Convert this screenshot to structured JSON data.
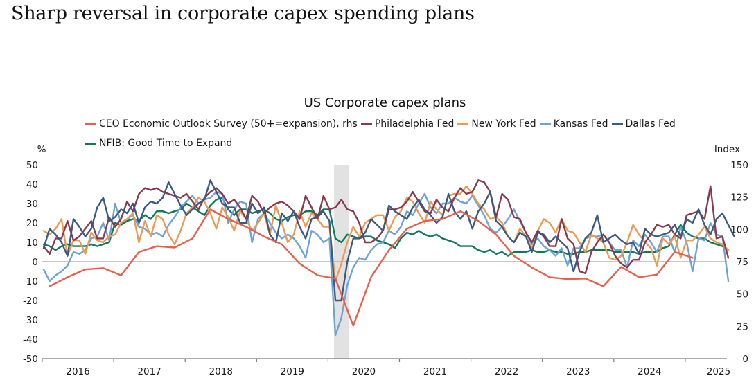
{
  "page_title": "Sharp reversal in corporate capex spending plans",
  "chart_data": {
    "type": "line",
    "title": "US Corporate capex plans",
    "left_axis": {
      "unit_label": "%",
      "ylim": [
        -50,
        50
      ],
      "ticks": [
        "50",
        "40",
        "30",
        "20",
        "10",
        "0",
        "-10",
        "-20",
        "-30",
        "-40",
        "-50"
      ],
      "tick_values": [
        50,
        40,
        30,
        20,
        10,
        0,
        -10,
        -20,
        -30,
        -40,
        -50
      ]
    },
    "right_axis": {
      "unit_label": "Index",
      "ylim": [
        0,
        150
      ],
      "ticks": [
        "150",
        "125",
        "100",
        "75",
        "50",
        "25",
        "0"
      ],
      "tick_values": [
        150,
        125,
        100,
        75,
        50,
        25,
        0
      ]
    },
    "x_axis": {
      "start": "2016-01",
      "end": "2025-06",
      "tick_labels": [
        "2016",
        "2017",
        "2018",
        "2019",
        "2020",
        "2021",
        "2022",
        "2023",
        "2024",
        "2025"
      ]
    },
    "recession_shading": {
      "start": "2020-02",
      "end": "2020-04"
    },
    "zero_line": true,
    "grid": false,
    "legend_position": "top",
    "series": [
      {
        "name": "CEO Economic Outlook Survey (50+=expansion), rhs",
        "axis": "right",
        "color": "#e8604c",
        "frequency": "quarterly",
        "start": "2016-01",
        "values": [
          56,
          63,
          69,
          70,
          64.5,
          82.5,
          87,
          86,
          93,
          115.5,
          108,
          102,
          94.5,
          88.5,
          73.5,
          64.5,
          62,
          25.5,
          63,
          84,
          100.5,
          106.5,
          108,
          114,
          106.5,
          96,
          79.5,
          70.5,
          63,
          61.5,
          62,
          56,
          71,
          63,
          65,
          82.5,
          78
        ]
      },
      {
        "name": "Philadelphia Fed",
        "axis": "left",
        "color": "#8b3a4e",
        "frequency": "monthly",
        "start": "2016-01",
        "values": [
          8,
          4,
          12,
          12,
          21,
          11,
          13,
          17,
          21,
          12,
          12,
          23,
          18,
          22,
          31,
          26,
          35,
          38,
          37,
          38,
          36,
          35,
          34,
          33,
          35,
          31,
          27,
          33,
          36,
          38,
          35,
          30,
          32,
          28,
          22,
          34,
          31,
          25,
          28,
          30,
          31,
          29,
          26,
          22,
          34,
          28,
          22,
          34,
          27,
          28,
          32,
          27,
          26,
          20,
          10,
          10,
          12,
          16,
          27,
          27,
          28,
          31,
          36,
          31,
          26,
          25,
          32,
          28,
          26,
          33,
          38,
          35,
          36,
          42,
          41,
          36,
          23,
          35,
          32,
          23,
          22,
          15,
          10,
          16,
          13,
          8,
          8,
          22,
          12,
          9,
          -5,
          -6,
          5,
          10,
          14,
          10,
          3,
          -1,
          -3,
          1,
          1,
          10,
          14,
          19,
          18,
          19,
          14,
          12,
          24,
          25,
          26,
          22,
          39,
          12,
          13,
          2
        ],
        "note": "approximate values read from chart"
      },
      {
        "name": "New York Fed",
        "axis": "left",
        "color": "#ee9a52",
        "frequency": "monthly",
        "start": "2016-01",
        "values": [
          16,
          14,
          17,
          22,
          3,
          11,
          11,
          4,
          15,
          11,
          10,
          13,
          14,
          20,
          22,
          25,
          10,
          21,
          13,
          24,
          22,
          14,
          9,
          16,
          25,
          28,
          33,
          31,
          25,
          17,
          28,
          23,
          16,
          26,
          22,
          16,
          20,
          25,
          14,
          29,
          20,
          10,
          14,
          26,
          18,
          25,
          22,
          18,
          18,
          -10,
          -1,
          10,
          18,
          13,
          20,
          22,
          24,
          24,
          16,
          23,
          26,
          33,
          31,
          25,
          20,
          31,
          27,
          24,
          34,
          35,
          35,
          39,
          35,
          30,
          27,
          22,
          23,
          20,
          13,
          10,
          17,
          13,
          7,
          16,
          22,
          20,
          15,
          22,
          16,
          15,
          10,
          5,
          14,
          12,
          10,
          2,
          1,
          3,
          10,
          19,
          14,
          10,
          7,
          -2,
          12,
          9,
          13,
          2,
          11,
          11,
          14,
          18,
          12,
          10,
          9,
          6
        ],
        "note": "approximate values read from chart"
      },
      {
        "name": "Kansas Fed",
        "axis": "left",
        "color": "#6fa3d6",
        "frequency": "monthly",
        "start": "2016-01",
        "values": [
          -4,
          -10,
          -7,
          -5,
          -2,
          5,
          4,
          6,
          12,
          13,
          20,
          11,
          30,
          20,
          22,
          24,
          18,
          17,
          14,
          15,
          13,
          19,
          23,
          28,
          31,
          34,
          30,
          32,
          33,
          36,
          35,
          20,
          27,
          31,
          30,
          10,
          22,
          25,
          20,
          15,
          12,
          14,
          12,
          8,
          2,
          16,
          14,
          10,
          12,
          -38,
          -29,
          -12,
          -3,
          2,
          1,
          6,
          9,
          10,
          16,
          14,
          18,
          26,
          24,
          30,
          35,
          28,
          25,
          30,
          30,
          33,
          31,
          30,
          34,
          29,
          24,
          17,
          15,
          18,
          22,
          27,
          21,
          15,
          9,
          12,
          8,
          6,
          3,
          7,
          -2,
          7,
          7,
          12,
          13,
          13,
          14,
          10,
          6,
          6,
          -3,
          11,
          8,
          14,
          10,
          5,
          13,
          13,
          5,
          18,
          10,
          -5,
          12,
          11,
          20,
          14,
          13,
          -10
        ],
        "note": "approximate values read from chart"
      },
      {
        "name": "Dallas Fed",
        "axis": "left",
        "color": "#3b5a82",
        "frequency": "monthly",
        "start": "2016-01",
        "values": [
          7,
          17,
          14,
          10,
          3,
          22,
          18,
          13,
          17,
          28,
          33,
          21,
          23,
          27,
          25,
          30,
          20,
          28,
          31,
          30,
          33,
          41,
          35,
          29,
          24,
          27,
          30,
          32,
          42,
          36,
          30,
          28,
          28,
          20,
          20,
          30,
          25,
          28,
          14,
          10,
          25,
          21,
          26,
          18,
          12,
          22,
          23,
          26,
          21,
          -20,
          -20,
          0,
          12,
          12,
          15,
          22,
          19,
          16,
          29,
          26,
          24,
          22,
          28,
          32,
          27,
          24,
          20,
          23,
          35,
          26,
          22,
          26,
          17,
          26,
          30,
          36,
          21,
          18,
          13,
          10,
          15,
          13,
          5,
          15,
          14,
          10,
          13,
          10,
          7,
          -5,
          5,
          12,
          15,
          24,
          10,
          12,
          14,
          11,
          9,
          10,
          4,
          17,
          14,
          13,
          14,
          15,
          19,
          13,
          22,
          20,
          27,
          19,
          14,
          22,
          25,
          19,
          13
        ],
        "note": "approximate values read from chart"
      },
      {
        "name": "NFIB: Good Time to Expand",
        "axis": "left",
        "color": "#0f7a5a",
        "frequency": "monthly",
        "start": "2016-01",
        "values": [
          9,
          8,
          6,
          8,
          9,
          8,
          8,
          8,
          9,
          8,
          9,
          10,
          20,
          19,
          21,
          22,
          21,
          24,
          22,
          26,
          26,
          25,
          26,
          27,
          30,
          28,
          26,
          24,
          29,
          32,
          33,
          27,
          24,
          27,
          27,
          25,
          26,
          27,
          25,
          22,
          21,
          23,
          24,
          24,
          26,
          26,
          24,
          27,
          27,
          12,
          10,
          14,
          13,
          12,
          13,
          13,
          11,
          10,
          9,
          7,
          12,
          15,
          14,
          16,
          14,
          13,
          14,
          12,
          11,
          10,
          8,
          8,
          8,
          6,
          5,
          6,
          4,
          5,
          3,
          5,
          5,
          5,
          6,
          5,
          5,
          6,
          5,
          5,
          4,
          4,
          5,
          5,
          6,
          6,
          6,
          6,
          5,
          5,
          5,
          5,
          4,
          5,
          5,
          5,
          7,
          8,
          14,
          19,
          15,
          13,
          12,
          12,
          10,
          9,
          8,
          6
        ],
        "note": "approximate values read from chart"
      }
    ]
  }
}
